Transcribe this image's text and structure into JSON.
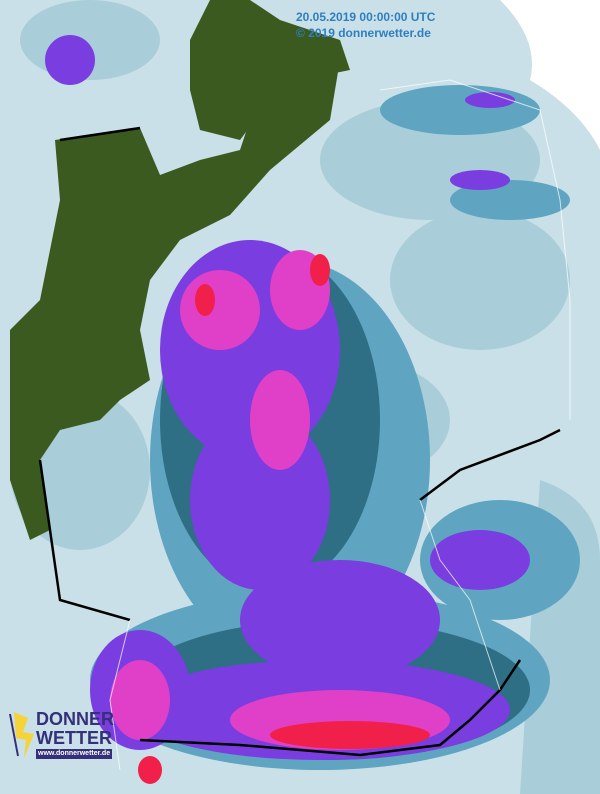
{
  "timestamp": "20.05.2019 00:00:00 UTC",
  "copyright": "© 2019 donnerwetter.de",
  "logo": {
    "line1": "DONNER",
    "line2": "WETTER",
    "url": "www.donnerwetter.de"
  },
  "colors": {
    "background": "#ffffff",
    "radar_light": "#c9e0e8",
    "radar_pale": "#a9cdd9",
    "radar_mid": "#5fa4c0",
    "radar_dark": "#2e6f86",
    "rain_blue": "#4b69c8",
    "rain_violet": "#7a3de0",
    "rain_magenta": "#e040c8",
    "rain_red": "#f0204a",
    "land_outside": "#3b5a1f",
    "border": "#000000",
    "timestamp_text": "#2f7fc0"
  }
}
